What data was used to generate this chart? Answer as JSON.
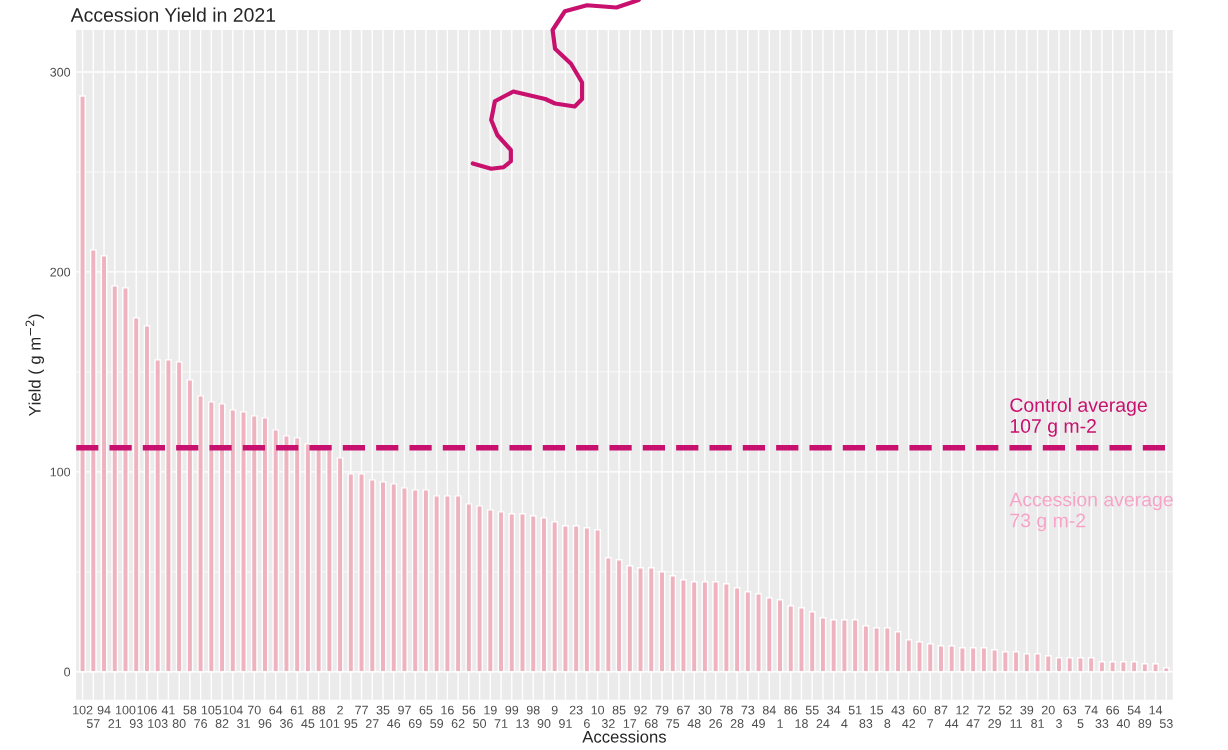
{
  "chart_data": {
    "type": "bar",
    "title": "Accession Yield in 2021",
    "xlabel": "Accessions",
    "ylabel": "Yield ( g m$^{−2}$)",
    "categories": [
      "102",
      "57",
      "94",
      "21",
      "100",
      "93",
      "106",
      "103",
      "41",
      "80",
      "58",
      "76",
      "105",
      "82",
      "104",
      "31",
      "70",
      "96",
      "64",
      "36",
      "61",
      "45",
      "88",
      "101",
      "2",
      "95",
      "77",
      "27",
      "35",
      "46",
      "97",
      "69",
      "65",
      "59",
      "16",
      "62",
      "56",
      "50",
      "19",
      "71",
      "99",
      "13",
      "98",
      "90",
      "9",
      "91",
      "23",
      "6",
      "10",
      "32",
      "85",
      "17",
      "92",
      "68",
      "79",
      "75",
      "67",
      "48",
      "30",
      "26",
      "78",
      "28",
      "73",
      "49",
      "84",
      "1",
      "86",
      "18",
      "55",
      "24",
      "34",
      "4",
      "51",
      "83",
      "15",
      "8",
      "43",
      "42",
      "60",
      "7",
      "87",
      "44",
      "12",
      "47",
      "72",
      "29",
      "52",
      "11",
      "39",
      "81",
      "20",
      "3",
      "63",
      "5",
      "74",
      "33",
      "66",
      "40",
      "54",
      "89",
      "14",
      "53"
    ],
    "values": [
      288,
      211,
      208,
      193,
      192,
      177,
      173,
      156,
      156,
      155,
      146,
      138,
      135,
      134,
      131,
      130,
      128,
      127,
      121,
      118,
      117,
      114,
      112,
      111,
      107,
      99,
      99,
      96,
      95,
      94,
      92,
      91,
      91,
      88,
      88,
      88,
      84,
      83,
      81,
      80,
      79,
      79,
      78,
      77,
      75,
      73,
      73,
      72,
      71,
      57,
      56,
      53,
      52,
      52,
      50,
      48,
      46,
      45,
      45,
      45,
      44,
      42,
      40,
      39,
      37,
      36,
      33,
      32,
      30,
      27,
      26,
      26,
      26,
      23,
      22,
      22,
      20,
      16,
      15,
      14,
      13,
      13,
      12,
      12,
      12,
      11,
      10,
      10,
      9,
      9,
      8,
      7,
      7,
      7,
      7,
      5,
      5,
      5,
      5,
      4,
      4,
      2
    ],
    "color": "#efb3bf",
    "ylim": [
      -14,
      321
    ],
    "yticks": [
      0,
      100,
      200,
      300
    ],
    "grid": true,
    "ref_lines": [
      {
        "axis": "y",
        "value": 112,
        "label": "Control average\n107 g m-2",
        "color": "#c8106e",
        "line_style": "dashed"
      }
    ],
    "annotations": [
      "Accession average\n73 g m-2"
    ]
  }
}
